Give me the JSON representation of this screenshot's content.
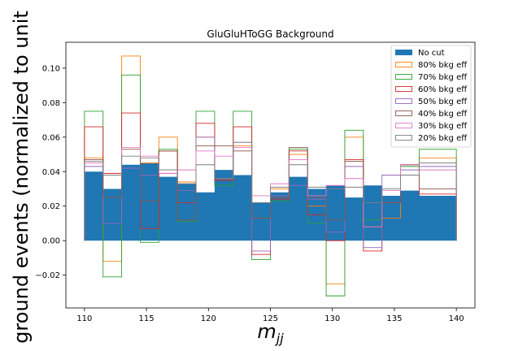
{
  "chart_data": {
    "type": "step-histogram",
    "title": "GluGluHToGG Background",
    "xlabel": "m",
    "xlabel_sub": "jj",
    "ylabel": "ground events (normalized to unit",
    "xlim": [
      108.5,
      141.5
    ],
    "ylim": [
      -0.039,
      0.115
    ],
    "xticks": [
      110,
      115,
      120,
      125,
      130,
      135,
      140
    ],
    "yticks": [
      -0.02,
      0.0,
      0.02,
      0.04,
      0.06,
      0.08,
      0.1
    ],
    "ytick_labels": [
      "−0.02",
      "0.00",
      "0.02",
      "0.04",
      "0.06",
      "0.08",
      "0.10"
    ],
    "bin_edges": [
      110,
      111.5,
      113,
      114.5,
      116,
      117.5,
      119,
      120.5,
      122,
      123.5,
      125,
      126.5,
      128,
      129.5,
      131,
      132.5,
      134,
      135.5,
      137,
      138.5,
      140
    ],
    "legend_position": "upper right",
    "series": [
      {
        "name": "No cut",
        "style": "filled",
        "color": "#1f77b4",
        "values": [
          0.04,
          0.03,
          0.044,
          0.045,
          0.037,
          0.033,
          0.028,
          0.041,
          0.038,
          0.022,
          0.028,
          0.037,
          0.03,
          0.032,
          0.025,
          0.032,
          0.026,
          0.029,
          0.026,
          0.026
        ]
      },
      {
        "name": "80% bkg eff",
        "style": "step",
        "color": "#ff7f0e",
        "values": [
          0.048,
          -0.012,
          0.107,
          0.045,
          0.06,
          0.034,
          0.06,
          0.036,
          0.055,
          0.013,
          0.03,
          0.05,
          0.02,
          -0.025,
          0.06,
          0.008,
          0.013,
          0.044,
          0.048,
          0.048
        ]
      },
      {
        "name": "70% bkg eff",
        "style": "step",
        "color": "#2ca02c",
        "values": [
          0.075,
          -0.021,
          0.096,
          -0.001,
          0.053,
          0.011,
          0.075,
          0.032,
          0.075,
          -0.011,
          0.023,
          0.053,
          0.01,
          -0.032,
          0.064,
          0.012,
          0.022,
          0.043,
          0.053,
          0.053
        ]
      },
      {
        "name": "60% bkg eff",
        "style": "step",
        "color": "#d62728",
        "values": [
          0.066,
          0.039,
          0.074,
          0.007,
          0.052,
          0.022,
          0.068,
          0.035,
          0.066,
          -0.008,
          0.024,
          0.052,
          0.015,
          0.0,
          0.047,
          -0.006,
          0.022,
          0.044,
          0.027,
          0.027
        ]
      },
      {
        "name": "50% bkg eff",
        "style": "step",
        "color": "#9467bd",
        "values": [
          0.043,
          0.01,
          0.042,
          0.038,
          0.039,
          0.029,
          0.06,
          0.036,
          0.057,
          -0.006,
          0.026,
          0.032,
          0.024,
          0.005,
          0.043,
          -0.004,
          0.038,
          0.041,
          0.043,
          0.043
        ]
      },
      {
        "name": "40% bkg eff",
        "style": "step",
        "color": "#8c564b",
        "values": [
          0.047,
          0.025,
          0.053,
          0.023,
          0.052,
          0.012,
          0.055,
          0.055,
          0.052,
          0.013,
          0.025,
          0.054,
          0.025,
          0.012,
          0.046,
          0.008,
          0.022,
          0.044,
          0.03,
          0.03
        ]
      },
      {
        "name": "30% bkg eff",
        "style": "step",
        "color": "#e377c2",
        "values": [
          0.045,
          0.038,
          0.054,
          0.049,
          0.039,
          0.041,
          0.052,
          0.049,
          0.054,
          0.026,
          0.033,
          0.047,
          0.026,
          0.032,
          0.036,
          0.008,
          0.029,
          0.044,
          0.041,
          0.041
        ]
      },
      {
        "name": "20% bkg eff",
        "style": "step",
        "color": "#7f7f7f",
        "values": [
          0.046,
          0.038,
          0.049,
          0.048,
          0.041,
          0.033,
          0.044,
          0.036,
          0.057,
          0.022,
          0.031,
          0.044,
          0.031,
          0.03,
          0.031,
          0.022,
          0.03,
          0.038,
          0.045,
          0.045
        ]
      }
    ]
  }
}
